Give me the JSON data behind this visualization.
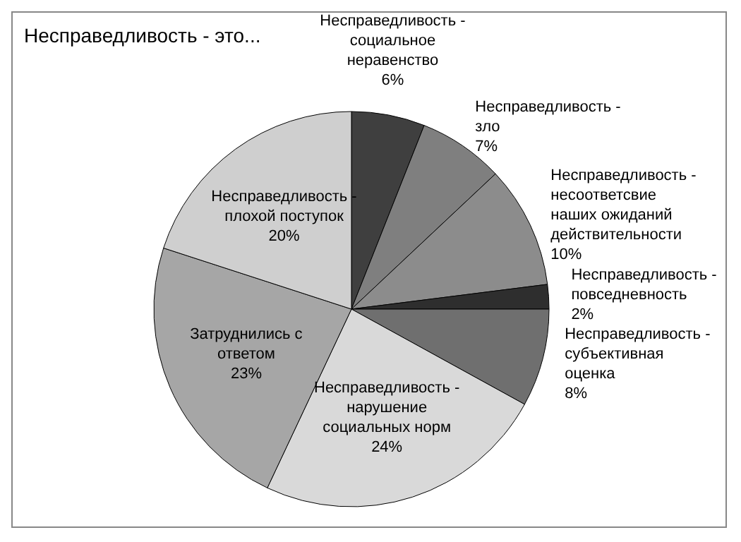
{
  "chart_data": {
    "type": "pie",
    "title": "Несправедливость - это...",
    "categories": [
      "Несправедливость - социальное неравенство",
      "Несправедливость - зло",
      "Несправедливость - несоответсвие наших ожиданий действительности",
      "Несправедливость - повседневность",
      "Несправедливость - субъективная оценка",
      "Несправедливость - нарушение социальных норм",
      "Затруднились с ответом",
      "Несправедливость - плохой поступок"
    ],
    "values": [
      6,
      7,
      10,
      2,
      8,
      24,
      23,
      20
    ],
    "value_labels": [
      "6%",
      "7%",
      "10%",
      "2%",
      "8%",
      "24%",
      "23%",
      "20%"
    ],
    "colors": [
      "#3f3f3f",
      "#7f7f7f",
      "#8c8c8c",
      "#2e2e2e",
      "#6f6f6f",
      "#d9d9d9",
      "#a6a6a6",
      "#cfcfcf"
    ],
    "legend": false
  }
}
